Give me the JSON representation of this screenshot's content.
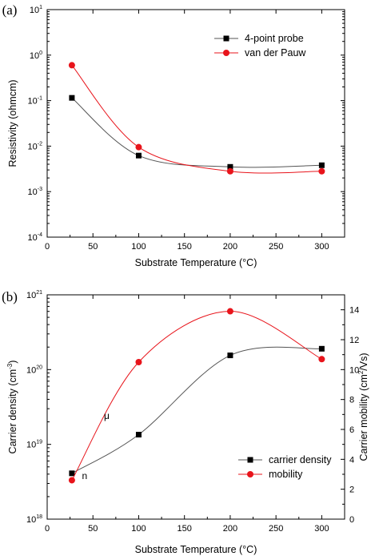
{
  "chart_data": [
    {
      "panel_label": "(a)",
      "type": "scatter",
      "xlabel": "Substrate Temperature (°C)",
      "ylabel": "Resistivity (ohmcm)",
      "xlim": [
        0,
        325
      ],
      "ylim": [
        0.0001,
        10
      ],
      "yscale": "log",
      "xticks": [
        0,
        50,
        100,
        150,
        200,
        250,
        300
      ],
      "yticks": [
        {
          "base": "10",
          "exp": "1",
          "value": 10
        },
        {
          "base": "10",
          "exp": "0",
          "value": 1
        },
        {
          "base": "10",
          "exp": "-1",
          "value": 0.1
        },
        {
          "base": "10",
          "exp": "-2",
          "value": 0.01
        },
        {
          "base": "10",
          "exp": "-3",
          "value": 0.001
        },
        {
          "base": "10",
          "exp": "-4",
          "value": 0.0001
        }
      ],
      "legend_position": "top-right",
      "series": [
        {
          "name": "4-point probe",
          "marker": "square",
          "color": "#000000",
          "line_color": "#555555",
          "x": [
            27,
            100,
            200,
            300
          ],
          "y": [
            0.115,
            0.0062,
            0.0035,
            0.0038
          ]
        },
        {
          "name": "van der Pauw",
          "marker": "circle",
          "color": "#e8141b",
          "line_color": "#e8141b",
          "x": [
            27,
            100,
            200,
            300
          ],
          "y": [
            0.6,
            0.0095,
            0.0028,
            0.0028
          ]
        }
      ]
    },
    {
      "panel_label": "(b)",
      "type": "scatter",
      "xlabel": "Substrate Temperature (°C)",
      "ylabel_left": "Carrier density (cm",
      "ylabel_left_sup": "-3",
      "ylabel_left_end": ")",
      "ylabel_right": "Carrier mobility (cm",
      "ylabel_right_sup": "2",
      "ylabel_right_end": "/Vs)",
      "xlim": [
        0,
        325
      ],
      "ylim_left": [
        1e+18,
        1e+21
      ],
      "yscale_left": "log",
      "ylim_right": [
        0,
        15
      ],
      "xticks": [
        0,
        50,
        100,
        150,
        200,
        250,
        300
      ],
      "yticks_left": [
        {
          "base": "10",
          "exp": "21",
          "value": 1e+21
        },
        {
          "base": "10",
          "exp": "20",
          "value": 1e+20
        },
        {
          "base": "10",
          "exp": "19",
          "value": 1e+19
        },
        {
          "base": "10",
          "exp": "18",
          "value": 1e+18
        }
      ],
      "yticks_right": [
        0,
        2,
        4,
        6,
        8,
        10,
        12,
        14
      ],
      "legend_position": "bottom-right",
      "annotations": [
        {
          "text": "μ",
          "x": 62,
          "y_right": 6.9
        },
        {
          "text": "n",
          "x": 38,
          "y_right": 2.9
        }
      ],
      "series": [
        {
          "name": "carrier density",
          "axis": "left",
          "marker": "square",
          "color": "#000000",
          "line_color": "#555555",
          "x": [
            27,
            100,
            200,
            300
          ],
          "y": [
            4.1e+18,
            1.35e+19,
            1.55e+20,
            1.9e+20
          ]
        },
        {
          "name": "mobility",
          "axis": "right",
          "marker": "circle",
          "color": "#e8141b",
          "line_color": "#e8141b",
          "x": [
            27,
            100,
            200,
            300
          ],
          "y": [
            2.6,
            10.5,
            13.9,
            10.7
          ]
        }
      ]
    }
  ]
}
